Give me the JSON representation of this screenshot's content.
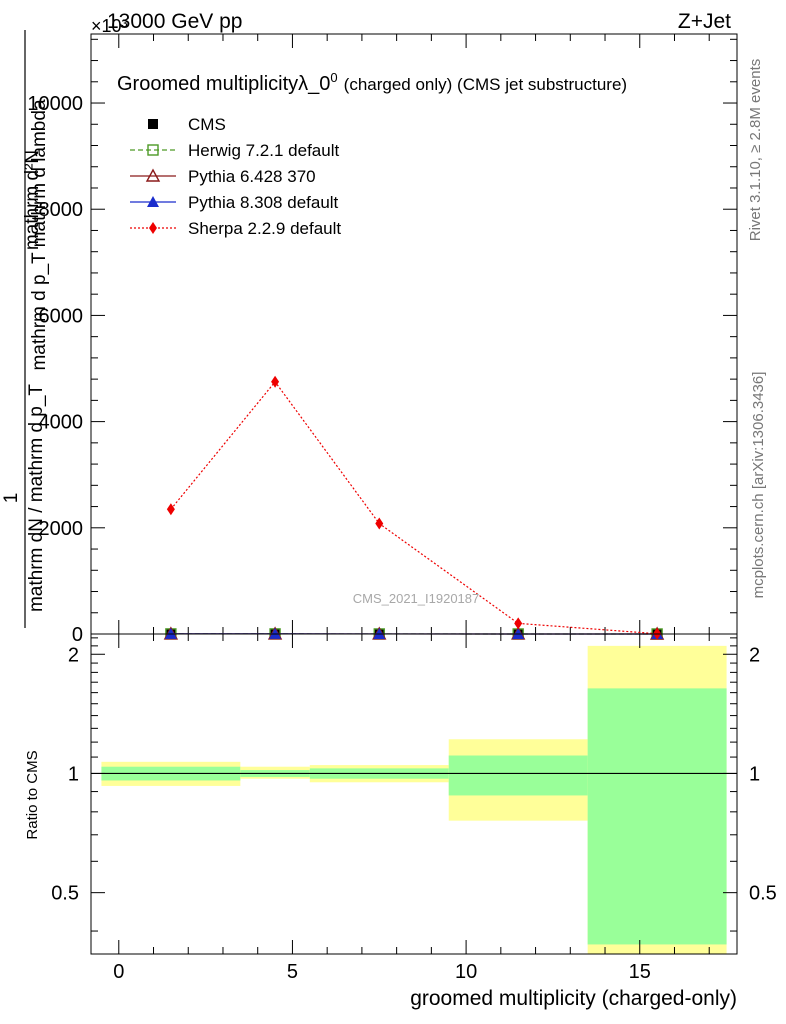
{
  "header": {
    "energy": "13000 GeV pp",
    "process": "Z+Jet",
    "multiplier": "×10³"
  },
  "side": {
    "rivet": "Rivet 3.1.10, ≥ 2.8M events",
    "mcplots": "mcplots.cern.ch [arXiv:1306.3436]"
  },
  "analysis_tag": "CMS_2021_I1920187",
  "chart_data": [
    {
      "type": "line",
      "title_main": "Groomed multiplicityλ_0",
      "title_sup": "0",
      "title_suffix": "(charged only) (CMS jet substructure)",
      "ylabel_top": "mathrm d²N",
      "ylabel_denominator": "mathrm d p_T mathrm d lambda",
      "ylabel_inner_numerator": "1",
      "ylabel_inner_denominator": "mathrm dN / mathrm d p_T",
      "ylim": [
        0,
        11300
      ],
      "xlim": [
        -0.8,
        17.8
      ],
      "yticks": [
        0,
        2000,
        4000,
        6000,
        8000,
        10000
      ],
      "ytick_labels": [
        "0",
        "2000",
        "4000",
        "6000",
        "8000",
        "10000"
      ],
      "legend_position": "top-left",
      "series": [
        {
          "name": "CMS",
          "color": "#000000",
          "marker": "square-filled",
          "x": [
            1.5,
            4.5,
            7.5,
            11.5,
            15.5
          ],
          "y": [
            2,
            2,
            1,
            0.5,
            0.2
          ]
        },
        {
          "name": "Herwig 7.2.1 default",
          "color": "#4d9a26",
          "marker": "square-open",
          "linestyle": "dashed",
          "x": [
            1.5,
            4.5,
            7.5,
            11.5,
            15.5
          ],
          "y": [
            2,
            2,
            1,
            0.5,
            0.2
          ]
        },
        {
          "name": "Pythia 6.428 370",
          "color": "#8b1a1a",
          "marker": "triangle-open",
          "linestyle": "solid",
          "x": [
            1.5,
            4.5,
            7.5,
            11.5,
            15.5
          ],
          "y": [
            2,
            2,
            1,
            0.5,
            0.2
          ]
        },
        {
          "name": "Pythia 8.308 default",
          "color": "#1a2ccc",
          "marker": "triangle-filled",
          "linestyle": "solid",
          "x": [
            1.5,
            4.5,
            7.5,
            11.5,
            15.5
          ],
          "y": [
            2,
            2,
            1,
            0.5,
            0.2
          ]
        },
        {
          "name": "Sherpa 2.2.9 default",
          "color": "#ee0000",
          "marker": "diamond-filled",
          "linestyle": "dotted",
          "x": [
            1.5,
            4.5,
            7.5,
            11.5,
            15.5
          ],
          "y": [
            2350,
            4750,
            2080,
            200,
            5
          ]
        }
      ]
    },
    {
      "type": "area",
      "ylabel": "Ratio to CMS",
      "xlabel": "groomed multiplicity (charged-only)",
      "xlim": [
        -0.8,
        17.8
      ],
      "ylim": [
        0.35,
        2.25
      ],
      "xticks": [
        0,
        5,
        10,
        15
      ],
      "xtick_labels": [
        "0",
        "5",
        "10",
        "15"
      ],
      "yticks": [
        0.5,
        1,
        2
      ],
      "ytick_labels": [
        "0.5",
        "1",
        "2"
      ],
      "reference_line": 1,
      "bins": [
        {
          "lo": -0.5,
          "hi": 3.5,
          "stat_lo": 0.96,
          "stat_hi": 1.04,
          "tot_lo": 0.93,
          "tot_hi": 1.07
        },
        {
          "lo": 3.5,
          "hi": 5.5,
          "stat_lo": 0.98,
          "stat_hi": 1.02,
          "tot_lo": 0.97,
          "tot_hi": 1.04
        },
        {
          "lo": 5.5,
          "hi": 9.5,
          "stat_lo": 0.97,
          "stat_hi": 1.03,
          "tot_lo": 0.95,
          "tot_hi": 1.05
        },
        {
          "lo": 9.5,
          "hi": 13.5,
          "stat_lo": 0.88,
          "stat_hi": 1.11,
          "tot_lo": 0.76,
          "tot_hi": 1.22
        },
        {
          "lo": 13.5,
          "hi": 17.5,
          "stat_lo": 0.37,
          "stat_hi": 1.64,
          "tot_lo": 0.33,
          "tot_hi": 2.1
        }
      ],
      "band_colors": {
        "stat": "#99ff99",
        "total": "#ffff99"
      }
    }
  ]
}
